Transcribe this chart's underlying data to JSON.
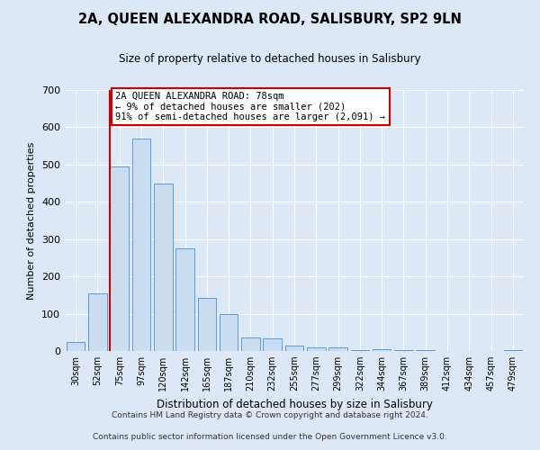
{
  "title": "2A, QUEEN ALEXANDRA ROAD, SALISBURY, SP2 9LN",
  "subtitle": "Size of property relative to detached houses in Salisbury",
  "xlabel": "Distribution of detached houses by size in Salisbury",
  "ylabel": "Number of detached properties",
  "bar_labels": [
    "30sqm",
    "52sqm",
    "75sqm",
    "97sqm",
    "120sqm",
    "142sqm",
    "165sqm",
    "187sqm",
    "210sqm",
    "232sqm",
    "255sqm",
    "277sqm",
    "299sqm",
    "322sqm",
    "344sqm",
    "367sqm",
    "389sqm",
    "412sqm",
    "434sqm",
    "457sqm",
    "479sqm"
  ],
  "bar_values": [
    25,
    155,
    495,
    570,
    448,
    275,
    143,
    100,
    37,
    35,
    14,
    10,
    10,
    2,
    5,
    2,
    2,
    0,
    0,
    0,
    2
  ],
  "bar_color": "#c9dcf0",
  "bar_edge_color": "#5b9bd5",
  "vline_index": 2,
  "vline_color": "#cc0000",
  "annotation_text": "2A QUEEN ALEXANDRA ROAD: 78sqm\n← 9% of detached houses are smaller (202)\n91% of semi-detached houses are larger (2,091) →",
  "annotation_box_facecolor": "#ffffff",
  "annotation_box_edgecolor": "#cc0000",
  "ylim": [
    0,
    700
  ],
  "yticks": [
    0,
    100,
    200,
    300,
    400,
    500,
    600,
    700
  ],
  "footer1": "Contains HM Land Registry data © Crown copyright and database right 2024.",
  "footer2": "Contains public sector information licensed under the Open Government Licence v3.0.",
  "fig_bg_color": "#dce8f5",
  "plot_bg_color": "#dce8f5",
  "footer_bg_color": "#ffffff"
}
